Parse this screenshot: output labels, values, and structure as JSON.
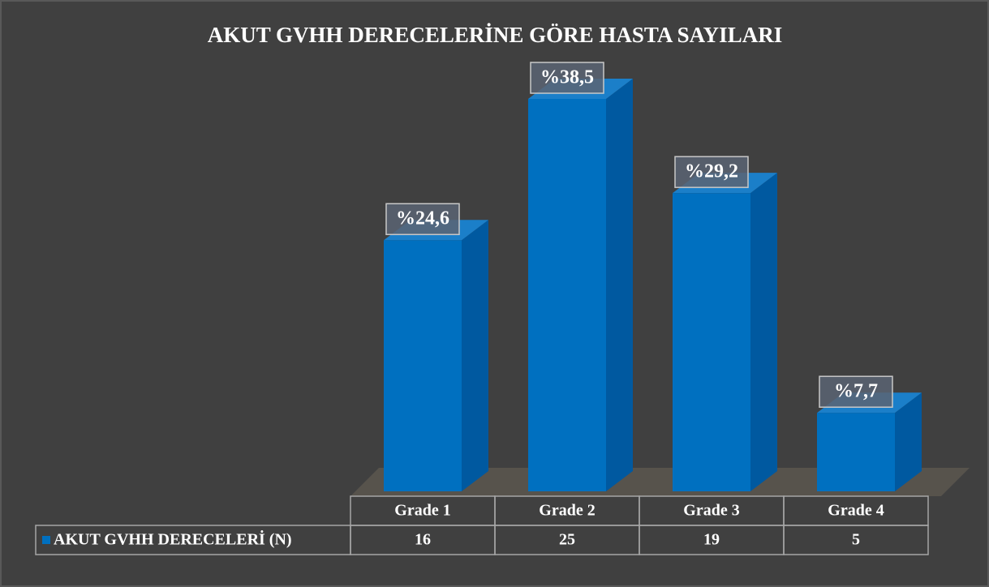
{
  "chart_data": {
    "type": "bar3d",
    "title": "AKUT GVHH DERECELERİNE GÖRE HASTA SAYILARI",
    "categories": [
      "Grade 1",
      "Grade 2",
      "Grade 3",
      "Grade 4"
    ],
    "series": [
      {
        "name": "AKUT GVHH DERECELERİ (N)",
        "color": "#0070c0",
        "values": [
          16,
          25,
          19,
          5
        ]
      }
    ],
    "percent_labels": {
      "values": [
        24.6,
        38.5,
        29.2,
        7.7
      ],
      "value_labels": [
        "%24,6",
        "%38,5",
        "%29,2",
        "%7,7"
      ]
    },
    "data_table": true
  }
}
